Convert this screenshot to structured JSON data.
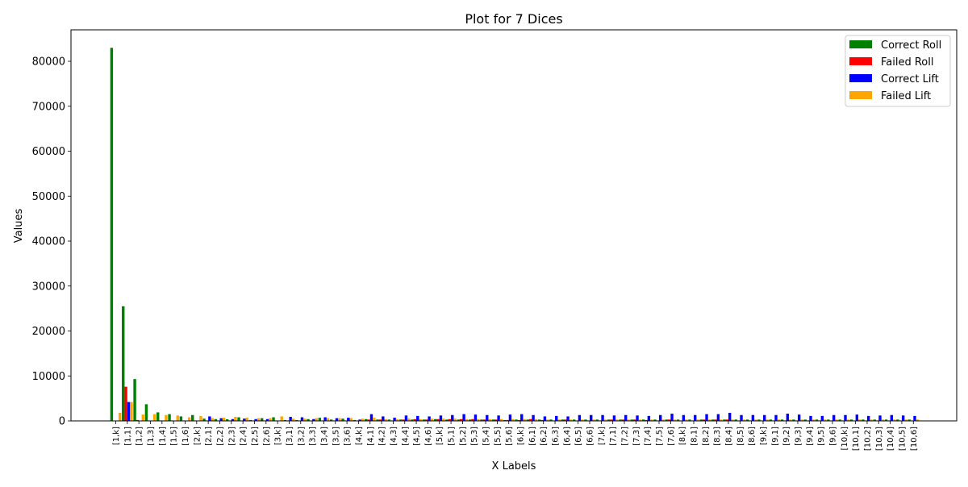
{
  "chart_data": {
    "type": "bar",
    "title": "Plot for 7 Dices",
    "xlabel": "X Labels",
    "ylabel": "Values",
    "ylim": [
      0,
      87000
    ],
    "yticks": [
      0,
      10000,
      20000,
      30000,
      40000,
      50000,
      60000,
      70000,
      80000
    ],
    "grid": false,
    "legend_position": "top-right",
    "categories": [
      "[1,k]",
      "[1,1]",
      "[1,2]",
      "[1,3]",
      "[1,4]",
      "[1,5]",
      "[1,6]",
      "[2,k]",
      "[2,1]",
      "[2,2]",
      "[2,3]",
      "[2,4]",
      "[2,5]",
      "[2,6]",
      "[3,k]",
      "[3,1]",
      "[3,2]",
      "[3,3]",
      "[3,4]",
      "[3,5]",
      "[3,6]",
      "[4,k]",
      "[4,1]",
      "[4,2]",
      "[4,3]",
      "[4,4]",
      "[4,5]",
      "[4,6]",
      "[5,k]",
      "[5,1]",
      "[5,2]",
      "[5,3]",
      "[5,4]",
      "[5,5]",
      "[5,6]",
      "[6,k]",
      "[6,1]",
      "[6,2]",
      "[6,3]",
      "[6,4]",
      "[6,5]",
      "[6,6]",
      "[7,k]",
      "[7,1]",
      "[7,2]",
      "[7,3]",
      "[7,4]",
      "[7,5]",
      "[7,6]",
      "[8,k]",
      "[8,1]",
      "[8,2]",
      "[8,3]",
      "[8,4]",
      "[8,5]",
      "[8,6]",
      "[9,k]",
      "[9,1]",
      "[9,2]",
      "[9,3]",
      "[9,4]",
      "[9,5]",
      "[9,6]",
      "[10,k]",
      "[10,1]",
      "[10,2]",
      "[10,3]",
      "[10,4]",
      "[10,5]",
      "[10,6]"
    ],
    "series": [
      {
        "name": "Correct Roll",
        "color": "#008000",
        "values": [
          83000,
          25500,
          9300,
          3700,
          1900,
          1500,
          1000,
          1300,
          500,
          400,
          350,
          800,
          200,
          600,
          800,
          200,
          200,
          400,
          700,
          300,
          500,
          200,
          400,
          300,
          300,
          300,
          300,
          300,
          400,
          300,
          300,
          300,
          300,
          300,
          200,
          300,
          300,
          300,
          300,
          300,
          300,
          300,
          300,
          300,
          300,
          300,
          300,
          300,
          300,
          300,
          300,
          300,
          300,
          300,
          300,
          300,
          300,
          300,
          300,
          300,
          300,
          300,
          300,
          300,
          300,
          300,
          300,
          300,
          300,
          300
        ]
      },
      {
        "name": "Failed Roll",
        "color": "#ff0000",
        "values": [
          0,
          7600,
          200,
          100,
          100,
          100,
          100,
          100,
          100,
          100,
          100,
          100,
          100,
          100,
          100,
          100,
          100,
          100,
          100,
          100,
          100,
          100,
          300,
          300,
          100,
          300,
          400,
          300,
          400,
          400,
          400,
          400,
          300,
          300,
          200,
          200,
          400,
          200,
          100,
          300,
          100,
          100,
          100,
          300,
          300,
          300,
          200,
          100,
          300,
          100,
          100,
          300,
          300,
          300,
          100,
          100,
          100,
          100,
          100,
          100,
          100,
          100,
          100,
          100,
          100,
          100,
          100,
          100,
          100,
          100
        ]
      },
      {
        "name": "Correct Lift",
        "color": "#0000ff",
        "values": [
          0,
          4200,
          0,
          0,
          0,
          0,
          0,
          0,
          1000,
          600,
          400,
          500,
          400,
          400,
          0,
          900,
          800,
          400,
          800,
          600,
          700,
          300,
          1500,
          1000,
          700,
          1200,
          1100,
          1000,
          1200,
          1300,
          1500,
          1400,
          1300,
          1200,
          1400,
          1500,
          1300,
          1000,
          1100,
          1000,
          1300,
          1300,
          1300,
          1200,
          1300,
          1200,
          1100,
          1300,
          1600,
          1300,
          1300,
          1500,
          1500,
          1800,
          1300,
          1300,
          1300,
          1300,
          1600,
          1400,
          1100,
          1100,
          1300,
          1300,
          1400,
          1100,
          1200,
          1300,
          1200,
          1100
        ]
      },
      {
        "name": "Failed Lift",
        "color": "#ffa500",
        "values": [
          1800,
          4200,
          1400,
          1500,
          1300,
          1200,
          800,
          1100,
          600,
          700,
          900,
          700,
          600,
          600,
          1000,
          500,
          500,
          600,
          600,
          600,
          600,
          500,
          700,
          400,
          400,
          500,
          400,
          500,
          500,
          500,
          400,
          400,
          400,
          400,
          400,
          400,
          400,
          300,
          300,
          300,
          300,
          300,
          300,
          300,
          300,
          300,
          300,
          300,
          300,
          300,
          300,
          300,
          300,
          300,
          300,
          300,
          300,
          300,
          300,
          300,
          300,
          300,
          300,
          300,
          300,
          300,
          300,
          300,
          300,
          300
        ]
      }
    ]
  }
}
